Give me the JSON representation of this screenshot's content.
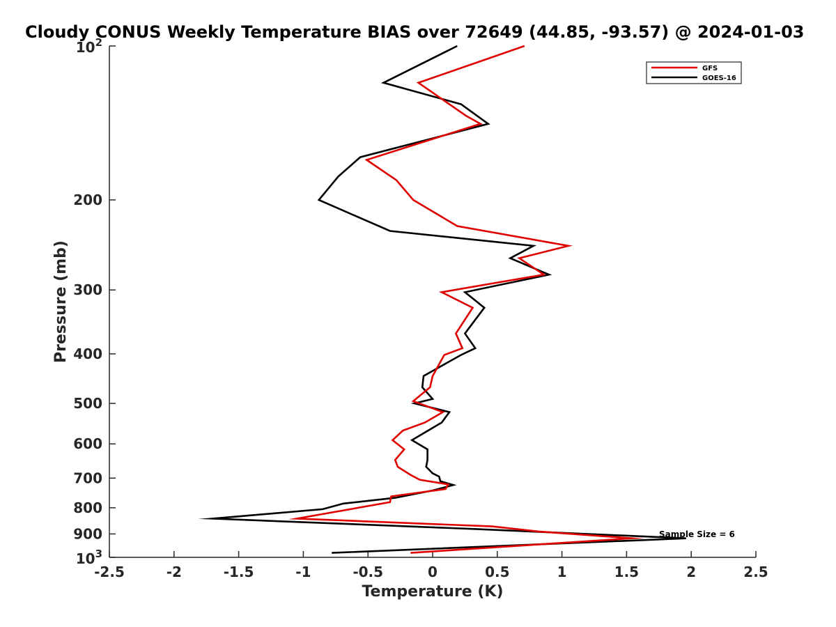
{
  "chart_data": {
    "type": "line",
    "title": "Cloudy CONUS Weekly Temperature BIAS over 72649 (44.85, -93.57) @ 2024-01-03",
    "xlabel": "Temperature (K)",
    "ylabel": "Pressure (mb)",
    "xlim": [
      -2.5,
      2.5
    ],
    "ylim": [
      100,
      1000
    ],
    "y_scale": "log",
    "y_reversed": true,
    "xticks": [
      "-2.5",
      "-2",
      "-1.5",
      "-1",
      "-0.5",
      "0",
      "0.5",
      "1",
      "1.5",
      "2",
      "2.5"
    ],
    "yticks": [
      {
        "value": 100,
        "base": "10",
        "exp": "2"
      },
      {
        "value": 200,
        "label": "200"
      },
      {
        "value": 300,
        "label": "300"
      },
      {
        "value": 400,
        "label": "400"
      },
      {
        "value": 500,
        "label": "500"
      },
      {
        "value": 600,
        "label": "600"
      },
      {
        "value": 700,
        "label": "700"
      },
      {
        "value": 800,
        "label": "800"
      },
      {
        "value": 900,
        "label": "900"
      },
      {
        "value": 1000,
        "base": "10",
        "exp": "3"
      }
    ],
    "grid": false,
    "legend_position": "top-right",
    "annotation": "Sample Size = 6",
    "series": [
      {
        "name": "GFS",
        "color": "#e00000",
        "x": [
          0.71,
          -0.11,
          0.26,
          0.37,
          -0.51,
          -0.28,
          -0.15,
          0.19,
          1.05,
          0.67,
          0.86,
          0.07,
          0.31,
          0.18,
          0.23,
          0.09,
          0.0,
          -0.02,
          -0.15,
          0.08,
          -0.06,
          -0.23,
          -0.31,
          -0.22,
          -0.29,
          -0.27,
          -0.17,
          -0.1,
          0.12,
          0.1,
          -0.32,
          -0.33,
          -1.05,
          0.46,
          0.82,
          1.54,
          -0.17
        ],
        "y": [
          100,
          118,
          137,
          142,
          167,
          183,
          200,
          225,
          246,
          260,
          280,
          303,
          325,
          365,
          390,
          402,
          442,
          465,
          495,
          520,
          545,
          565,
          590,
          615,
          645,
          665,
          690,
          705,
          720,
          735,
          760,
          780,
          840,
          870,
          890,
          918,
          980
        ]
      },
      {
        "name": "GOES-16",
        "color": "#000000",
        "x": [
          0.19,
          -0.38,
          0.22,
          0.43,
          -0.56,
          -0.73,
          -0.88,
          -0.33,
          0.78,
          0.6,
          0.9,
          0.25,
          0.4,
          0.25,
          0.33,
          0.22,
          -0.07,
          -0.08,
          0.0,
          -0.14,
          0.13,
          0.07,
          -0.16,
          -0.04,
          -0.04,
          -0.05,
          0.0,
          0.05,
          0.06,
          0.16,
          0.0,
          -0.29,
          -0.69,
          -0.85,
          -1.7,
          0.32,
          1.96,
          -0.78
        ],
        "y": [
          100,
          118,
          130,
          142,
          165,
          180,
          200,
          230,
          246,
          260,
          280,
          303,
          325,
          365,
          390,
          402,
          442,
          465,
          490,
          500,
          520,
          545,
          590,
          615,
          645,
          665,
          685,
          695,
          710,
          722,
          740,
          765,
          785,
          805,
          840,
          880,
          918,
          980
        ]
      }
    ]
  }
}
